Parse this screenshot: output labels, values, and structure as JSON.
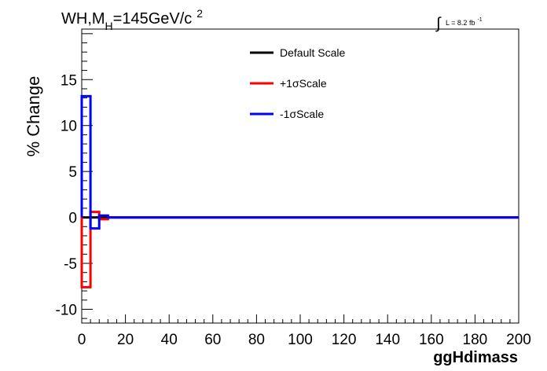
{
  "chart_data": {
    "type": "line",
    "title": {
      "prefix": "WH,M",
      "subscript": "H",
      "suffix": "=145GeV/c",
      "superscript": "2"
    },
    "luminosity": {
      "integral": "∫",
      "text": "L = 8.2 fb",
      "superscript": "-1"
    },
    "xlabel": "ggHdimass",
    "ylabel": "% Change",
    "xlim": [
      0,
      200
    ],
    "ylim": [
      -11.5,
      20.5
    ],
    "xticks": [
      0,
      20,
      40,
      60,
      80,
      100,
      120,
      140,
      160,
      180,
      200
    ],
    "yticks": [
      -10,
      -5,
      0,
      5,
      10,
      15
    ],
    "bin_edges": [
      0,
      4,
      8,
      12,
      16,
      200
    ],
    "series": [
      {
        "name": "Default Scale",
        "color": "#000000",
        "values": [
          0,
          0,
          0,
          0,
          0
        ]
      },
      {
        "name": "+1σScale",
        "color": "#ff0000",
        "values": [
          -7.6,
          0.6,
          -0.2,
          0.0,
          0.0
        ]
      },
      {
        "name": "-1σScale",
        "color": "#0000ff",
        "values": [
          13.2,
          -1.2,
          0.2,
          0.0,
          0.0
        ]
      }
    ],
    "legend_position": "top-center"
  }
}
